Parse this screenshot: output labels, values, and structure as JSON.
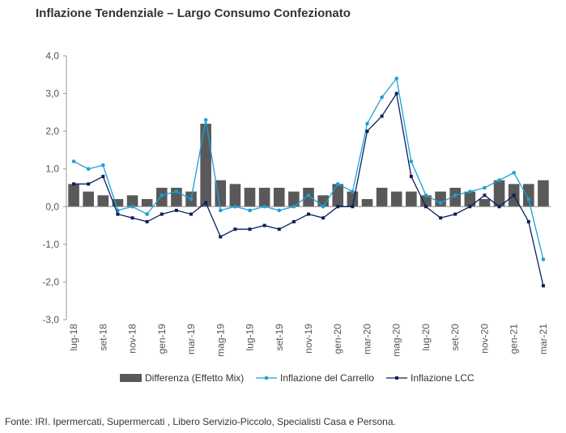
{
  "title": "Inflazione Tendenziale – Largo Consumo Confezionato",
  "source": "Fonte: IRI. Ipermercati, Supermercati , Libero Servizio-Piccolo, Specialisti Casa e Persona.",
  "chart_data": {
    "type": "bar+line",
    "ylim": [
      -3,
      4
    ],
    "yticks": [
      "-3,0",
      "-2,0",
      "-1,0",
      "0,0",
      "1,0",
      "2,0",
      "3,0",
      "4,0"
    ],
    "ytick_values": [
      -3,
      -2,
      -1,
      0,
      1,
      2,
      3,
      4
    ],
    "negative_tick_color": "#c00000",
    "categories": [
      "lug-18",
      "ago-18",
      "set-18",
      "ott-18",
      "nov-18",
      "dic-18",
      "gen-19",
      "feb-19",
      "mar-19",
      "apr-19",
      "mag-19",
      "giu-19",
      "lug-19",
      "ago-19",
      "set-19",
      "ott-19",
      "nov-19",
      "dic-19",
      "gen-20",
      "feb-20",
      "mar-20",
      "apr-20",
      "mag-20",
      "giu-20",
      "lug-20",
      "ago-20",
      "set-20",
      "ott-20",
      "nov-20",
      "dic-20",
      "gen-21",
      "feb-21",
      "mar-21"
    ],
    "xtick_labels": [
      "lug-18",
      "set-18",
      "nov-18",
      "gen-19",
      "mar-19",
      "mag-19",
      "lug-19",
      "set-19",
      "nov-19",
      "gen-20",
      "mar-20",
      "mag-20",
      "lug-20",
      "set-20",
      "nov-20",
      "gen-21",
      "mar-21"
    ],
    "series": [
      {
        "name": "Differenza (Effetto Mix)",
        "kind": "bar",
        "color": "#595959",
        "values": [
          0.6,
          0.4,
          0.3,
          0.2,
          0.3,
          0.2,
          0.5,
          0.5,
          0.4,
          2.2,
          0.7,
          0.6,
          0.5,
          0.5,
          0.5,
          0.4,
          0.5,
          0.3,
          0.6,
          0.4,
          0.2,
          0.5,
          0.4,
          0.4,
          0.3,
          0.4,
          0.5,
          0.4,
          0.2,
          0.7,
          0.6,
          0.6,
          0.7
        ]
      },
      {
        "name": "Inflazione del Carrello",
        "kind": "line",
        "color": "#1aa0d8",
        "values": [
          1.2,
          1.0,
          1.1,
          -0.1,
          0.0,
          -0.2,
          0.3,
          0.4,
          0.2,
          2.3,
          -0.1,
          0.0,
          -0.1,
          0.0,
          -0.1,
          0.0,
          0.3,
          0.0,
          0.6,
          0.4,
          2.2,
          2.9,
          3.4,
          1.2,
          0.3,
          0.1,
          0.3,
          0.4,
          0.5,
          0.7,
          0.9,
          0.2,
          -1.4
        ]
      },
      {
        "name": "Inflazione LCC",
        "kind": "line",
        "color": "#0b1f5c",
        "values": [
          0.6,
          0.6,
          0.8,
          -0.2,
          -0.3,
          -0.4,
          -0.2,
          -0.1,
          -0.2,
          0.1,
          -0.8,
          -0.6,
          -0.6,
          -0.5,
          -0.6,
          -0.4,
          -0.2,
          -0.3,
          0.0,
          0.0,
          2.0,
          2.4,
          3.0,
          0.8,
          0.0,
          -0.3,
          -0.2,
          0.0,
          0.3,
          0.0,
          0.3,
          -0.4,
          -2.1
        ]
      }
    ],
    "legend_position": "bottom",
    "grid": false
  }
}
